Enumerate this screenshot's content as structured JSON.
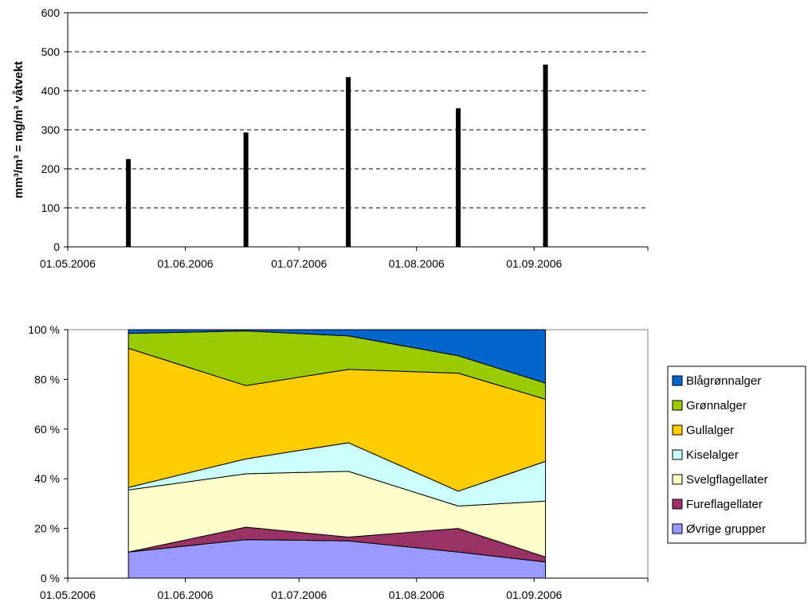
{
  "chart_data": [
    {
      "type": "bar",
      "ylabel": "mm³/m³ = mg/m³ våtvekt",
      "xlim": [
        "2006-05-01",
        "2006-10-01"
      ],
      "ylim": [
        0,
        600
      ],
      "yticks": [
        0,
        100,
        200,
        300,
        400,
        500,
        600
      ],
      "xticks": [
        "01.05.2006",
        "01.06.2006",
        "01.07.2006",
        "01.08.2006",
        "01.09.2006"
      ],
      "grid": true,
      "gridStyle": "dashed",
      "barColor": "#000000",
      "points": [
        {
          "x": "2006-05-17",
          "y": 225
        },
        {
          "x": "2006-06-17",
          "y": 293
        },
        {
          "x": "2006-07-14",
          "y": 435
        },
        {
          "x": "2006-08-12",
          "y": 355
        },
        {
          "x": "2006-09-04",
          "y": 467
        }
      ]
    },
    {
      "type": "area",
      "stacked": "percent",
      "xlim": [
        "2006-05-01",
        "2006-10-01"
      ],
      "ylim": [
        0,
        100
      ],
      "yticks": [
        "0 %",
        "20 %",
        "40 %",
        "60 %",
        "80 %",
        "100 %"
      ],
      "xticks": [
        "01.05.2006",
        "01.06.2006",
        "01.07.2006",
        "01.08.2006",
        "01.09.2006"
      ],
      "x": [
        "2006-05-17",
        "2006-06-17",
        "2006-07-14",
        "2006-08-12",
        "2006-09-04"
      ],
      "legendPosition": "right",
      "series": [
        {
          "name": "Øvrige grupper",
          "color": "#9999FF",
          "values": [
            10.5,
            15.5,
            15,
            10.5,
            6.5
          ]
        },
        {
          "name": "Fureflagellater",
          "color": "#993366",
          "values": [
            0,
            5,
            1.5,
            9.5,
            2
          ]
        },
        {
          "name": "Svelgflagellater",
          "color": "#FFFFCC",
          "values": [
            25,
            21.5,
            26.5,
            9,
            22.5
          ]
        },
        {
          "name": "Kiselalger",
          "color": "#CCFFFF",
          "values": [
            1,
            6,
            11.5,
            6,
            16
          ]
        },
        {
          "name": "Gullalger",
          "color": "#FFCC00",
          "values": [
            56,
            29.5,
            29.5,
            47.5,
            25
          ]
        },
        {
          "name": "Grønnalger",
          "color": "#99CC00",
          "values": [
            6,
            22,
            13.5,
            7,
            6.5
          ]
        },
        {
          "name": "Blågrønnalger",
          "color": "#0066CC",
          "values": [
            1.5,
            0.5,
            2.5,
            10.5,
            21.5
          ]
        }
      ]
    }
  ]
}
